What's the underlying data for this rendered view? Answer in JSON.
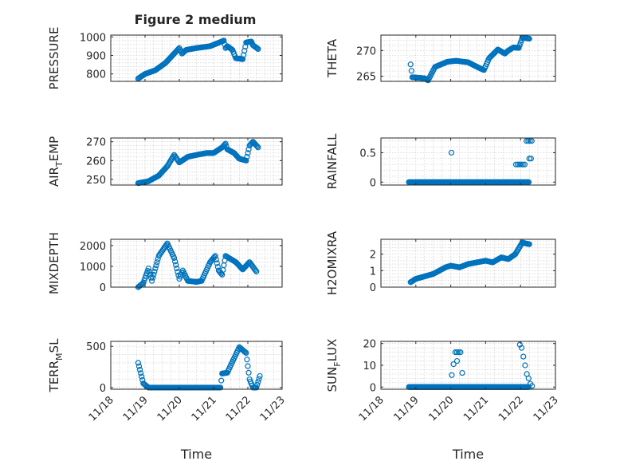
{
  "figure": {
    "title": "Figure 2 medium"
  },
  "colors": {
    "series": "#0072BD",
    "axis": "#262626",
    "grid": "#c8c8c8"
  },
  "chart_data": [
    {
      "type": "scatter",
      "ylabel": "PRESSURE",
      "xlim": [
        11.18,
        11.23
      ],
      "ylim": [
        760,
        1010
      ],
      "yticks": [
        800,
        900,
        1000
      ],
      "ytick_labels": [
        "800",
        "900",
        "1000"
      ],
      "title": "Figure 2 medium",
      "grid": true,
      "series": [
        {
          "anchors": [
            [
              11.188,
              775
            ],
            [
              11.19,
              800
            ],
            [
              11.193,
              820
            ],
            [
              11.196,
              860
            ],
            [
              11.198,
              900
            ],
            [
              11.2,
              940
            ],
            [
              11.2008,
              910
            ],
            [
              11.202,
              930
            ],
            [
              11.205,
              940
            ],
            [
              11.207,
              945
            ],
            [
              11.209,
              950
            ],
            [
              11.211,
              965
            ],
            [
              11.213,
              980
            ],
            [
              11.2135,
              940
            ],
            [
              11.214,
              950
            ],
            [
              11.2155,
              930
            ],
            [
              11.2165,
              885
            ],
            [
              11.2185,
              880
            ],
            [
              11.2195,
              970
            ],
            [
              11.221,
              975
            ],
            [
              11.2215,
              955
            ],
            [
              11.223,
              935
            ]
          ]
        }
      ]
    },
    {
      "type": "scatter",
      "ylabel": "THETA",
      "xlim": [
        11.18,
        11.23
      ],
      "ylim": [
        264,
        273
      ],
      "yticks": [
        265,
        270
      ],
      "ytick_labels": [
        "265",
        "270"
      ],
      "grid": true,
      "series": [
        {
          "anchors": [
            [
              11.1885,
              267.3
            ],
            [
              11.189,
              264.8
            ],
            [
              11.1925,
              264.6
            ],
            [
              11.1935,
              264.2
            ],
            [
              11.1955,
              266.8
            ],
            [
              11.199,
              267.8
            ],
            [
              11.2015,
              268.0
            ],
            [
              11.205,
              267.7
            ],
            [
              11.207,
              267.0
            ],
            [
              11.2085,
              266.5
            ],
            [
              11.2095,
              266.2
            ],
            [
              11.211,
              268.5
            ],
            [
              11.2135,
              270.2
            ],
            [
              11.2155,
              269.4
            ],
            [
              11.2165,
              270.0
            ],
            [
              11.218,
              270.6
            ],
            [
              11.2195,
              270.5
            ],
            [
              11.2205,
              272.5
            ],
            [
              11.2225,
              272.3
            ]
          ]
        }
      ]
    },
    {
      "type": "scatter",
      "ylabel": "AIR_TEMP",
      "ylabel_main": "AIR",
      "ylabel_sub": "T",
      "ylabel_rest": "EMP",
      "xlim": [
        11.18,
        11.23
      ],
      "ylim": [
        247,
        272
      ],
      "yticks": [
        250,
        260,
        270
      ],
      "ytick_labels": [
        "250",
        "260",
        "270"
      ],
      "grid": true,
      "series": [
        {
          "anchors": [
            [
              11.188,
              248
            ],
            [
              11.191,
              249
            ],
            [
              11.194,
              252
            ],
            [
              11.1965,
              257
            ],
            [
              11.1985,
              263
            ],
            [
              11.2,
              259
            ],
            [
              11.2025,
              262
            ],
            [
              11.205,
              263
            ],
            [
              11.208,
              264
            ],
            [
              11.21,
              264
            ],
            [
              11.2125,
              267
            ],
            [
              11.2135,
              269
            ],
            [
              11.214,
              266
            ],
            [
              11.216,
              264
            ],
            [
              11.2175,
              261
            ],
            [
              11.2195,
              260
            ],
            [
              11.2205,
              268
            ],
            [
              11.2215,
              270
            ],
            [
              11.223,
              267
            ]
          ]
        }
      ]
    },
    {
      "type": "scatter",
      "ylabel": "RAINFALL",
      "xlim": [
        11.18,
        11.23
      ],
      "ylim": [
        -0.05,
        0.75
      ],
      "yticks": [
        0,
        0.5
      ],
      "ytick_labels": [
        "0",
        "0.5"
      ],
      "grid": true,
      "series": [
        {
          "name": "",
          "x_from": 11.188,
          "x_to": 11.2225,
          "y": 0
        },
        {
          "name": "",
          "points": [
            [
              11.2002,
              0.5
            ],
            [
              11.2187,
              0.3
            ],
            [
              11.2192,
              0.3
            ],
            [
              11.2197,
              0.3
            ],
            [
              11.2202,
              0.3
            ],
            [
              11.2207,
              0.3
            ],
            [
              11.2212,
              0.3
            ],
            [
              11.2217,
              0.7
            ],
            [
              11.2222,
              0.7
            ],
            [
              11.2227,
              0.7
            ],
            [
              11.2232,
              0.7
            ],
            [
              11.2225,
              0.4
            ],
            [
              11.223,
              0.4
            ]
          ]
        }
      ]
    },
    {
      "type": "scatter",
      "ylabel": "MIXDEPTH",
      "xlim": [
        11.18,
        11.23
      ],
      "ylim": [
        0,
        2300
      ],
      "yticks": [
        0,
        1000,
        2000
      ],
      "ytick_labels": [
        "0",
        "1000",
        "2000"
      ],
      "grid": true,
      "series": [
        {
          "anchors": [
            [
              11.188,
              0
            ],
            [
              11.1895,
              200
            ],
            [
              11.191,
              900
            ],
            [
              11.192,
              300
            ],
            [
              11.194,
              1500
            ],
            [
              11.1965,
              2100
            ],
            [
              11.1985,
              1400
            ],
            [
              11.2,
              400
            ],
            [
              11.201,
              800
            ],
            [
              11.2025,
              300
            ],
            [
              11.205,
              250
            ],
            [
              11.2065,
              300
            ],
            [
              11.209,
              1200
            ],
            [
              11.2105,
              1500
            ],
            [
              11.2115,
              800
            ],
            [
              11.2125,
              600
            ],
            [
              11.2135,
              1500
            ],
            [
              11.2165,
              1200
            ],
            [
              11.2185,
              850
            ],
            [
              11.2205,
              1200
            ],
            [
              11.2225,
              750
            ]
          ]
        }
      ]
    },
    {
      "type": "scatter",
      "ylabel": "H2OMIXRA",
      "xlim": [
        11.18,
        11.23
      ],
      "ylim": [
        0,
        2.9
      ],
      "yticks": [
        0,
        1,
        2
      ],
      "ytick_labels": [
        "0",
        "1",
        "2"
      ],
      "grid": true,
      "series": [
        {
          "anchors": [
            [
              11.1885,
              0.3
            ],
            [
              11.19,
              0.5
            ],
            [
              11.195,
              0.8
            ],
            [
              11.1985,
              1.2
            ],
            [
              11.2,
              1.3
            ],
            [
              11.2025,
              1.2
            ],
            [
              11.205,
              1.4
            ],
            [
              11.21,
              1.6
            ],
            [
              11.212,
              1.5
            ],
            [
              11.2145,
              1.8
            ],
            [
              11.2165,
              1.7
            ],
            [
              11.2185,
              2.0
            ],
            [
              11.2205,
              2.7
            ],
            [
              11.2225,
              2.6
            ]
          ]
        }
      ]
    },
    {
      "type": "scatter",
      "ylabel": "TERR_MSL",
      "ylabel_main": "TERR",
      "ylabel_sub": "M",
      "ylabel_rest": "SL",
      "xlim": [
        11.18,
        11.23
      ],
      "ylim": [
        -20,
        560
      ],
      "yticks": [
        0,
        500
      ],
      "ytick_labels": [
        "0",
        "500"
      ],
      "grid": true,
      "xticks": [
        11.18,
        11.19,
        11.2,
        11.21,
        11.22,
        11.23
      ],
      "xtick_labels": [
        "11/18",
        "11/19",
        "11/20",
        "11/21",
        "11/22",
        "11/23"
      ],
      "xlabel": "Time",
      "series": [
        {
          "anchors": [
            [
              11.188,
              300
            ],
            [
              11.1895,
              50
            ],
            [
              11.191,
              0
            ],
            [
              11.21,
              0
            ],
            [
              11.212,
              0
            ],
            [
              11.2125,
              170
            ],
            [
              11.214,
              180
            ],
            [
              11.215,
              270
            ],
            [
              11.2165,
              400
            ],
            [
              11.2175,
              490
            ],
            [
              11.2195,
              420
            ],
            [
              11.2205,
              100
            ],
            [
              11.2215,
              0
            ],
            [
              11.2225,
              0
            ],
            [
              11.2235,
              140
            ]
          ]
        }
      ]
    },
    {
      "type": "scatter",
      "ylabel": "SUN_FLUX",
      "ylabel_main": "SUN",
      "ylabel_sub": "F",
      "ylabel_rest": "LUX",
      "xlim": [
        11.18,
        11.23
      ],
      "ylim": [
        -1,
        21
      ],
      "yticks": [
        0,
        10,
        20
      ],
      "ytick_labels": [
        "0",
        "10",
        "20"
      ],
      "grid": true,
      "xticks": [
        11.18,
        11.19,
        11.2,
        11.21,
        11.22,
        11.23
      ],
      "xtick_labels": [
        "11/18",
        "11/19",
        "11/20",
        "11/21",
        "11/22",
        "11/23"
      ],
      "xlabel": "Time",
      "series": [
        {
          "name": "",
          "x_from": 11.188,
          "x_to": 11.2225,
          "y": 0
        },
        {
          "name": "",
          "points": [
            [
              11.2003,
              5.5
            ],
            [
              11.2008,
              10.5
            ],
            [
              11.2013,
              16
            ],
            [
              11.2018,
              16
            ],
            [
              11.2023,
              16
            ],
            [
              11.2028,
              16
            ],
            [
              11.2018,
              12
            ],
            [
              11.2033,
              6.5
            ],
            [
              11.2198,
              19.5
            ],
            [
              11.2203,
              18
            ],
            [
              11.2208,
              14
            ],
            [
              11.2213,
              10
            ],
            [
              11.2218,
              6
            ],
            [
              11.2223,
              4
            ],
            [
              11.2228,
              1.5
            ],
            [
              11.2233,
              0.5
            ]
          ]
        }
      ]
    }
  ]
}
